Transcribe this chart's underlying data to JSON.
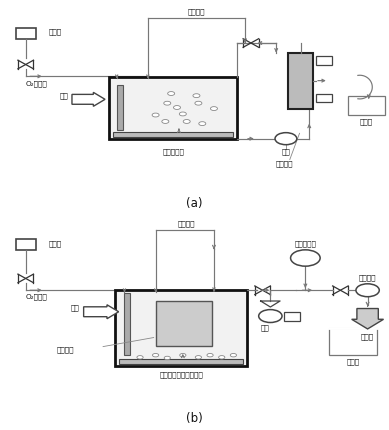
{
  "title_a": "(a)",
  "title_b": "(b)",
  "labels_a": {
    "pressure": "壓力計",
    "program_control": "程序控制",
    "o2_air": "O₂／空氣",
    "wastewater": "廢水",
    "stir_aerate": "撩拌＋曝氣",
    "pump": "泵浦",
    "membrane_unit": "薄膜單元",
    "treated_water": "處理水"
  },
  "labels_b": {
    "pressure": "壓力計",
    "program_control": "程序控制",
    "o2_air": "O₂／空氣",
    "wastewater": "廢水",
    "stir_aerate_clean": "撩拌＋曝氣＋薄膜清除",
    "pump": "泵浦",
    "membrane_unit": "薄膜單元",
    "treated_water": "處理水",
    "vacuum_gauge": "真空壓力計",
    "vacuum_tank": "真空車滻"
  },
  "lc": "#777777",
  "fs": 5.3
}
